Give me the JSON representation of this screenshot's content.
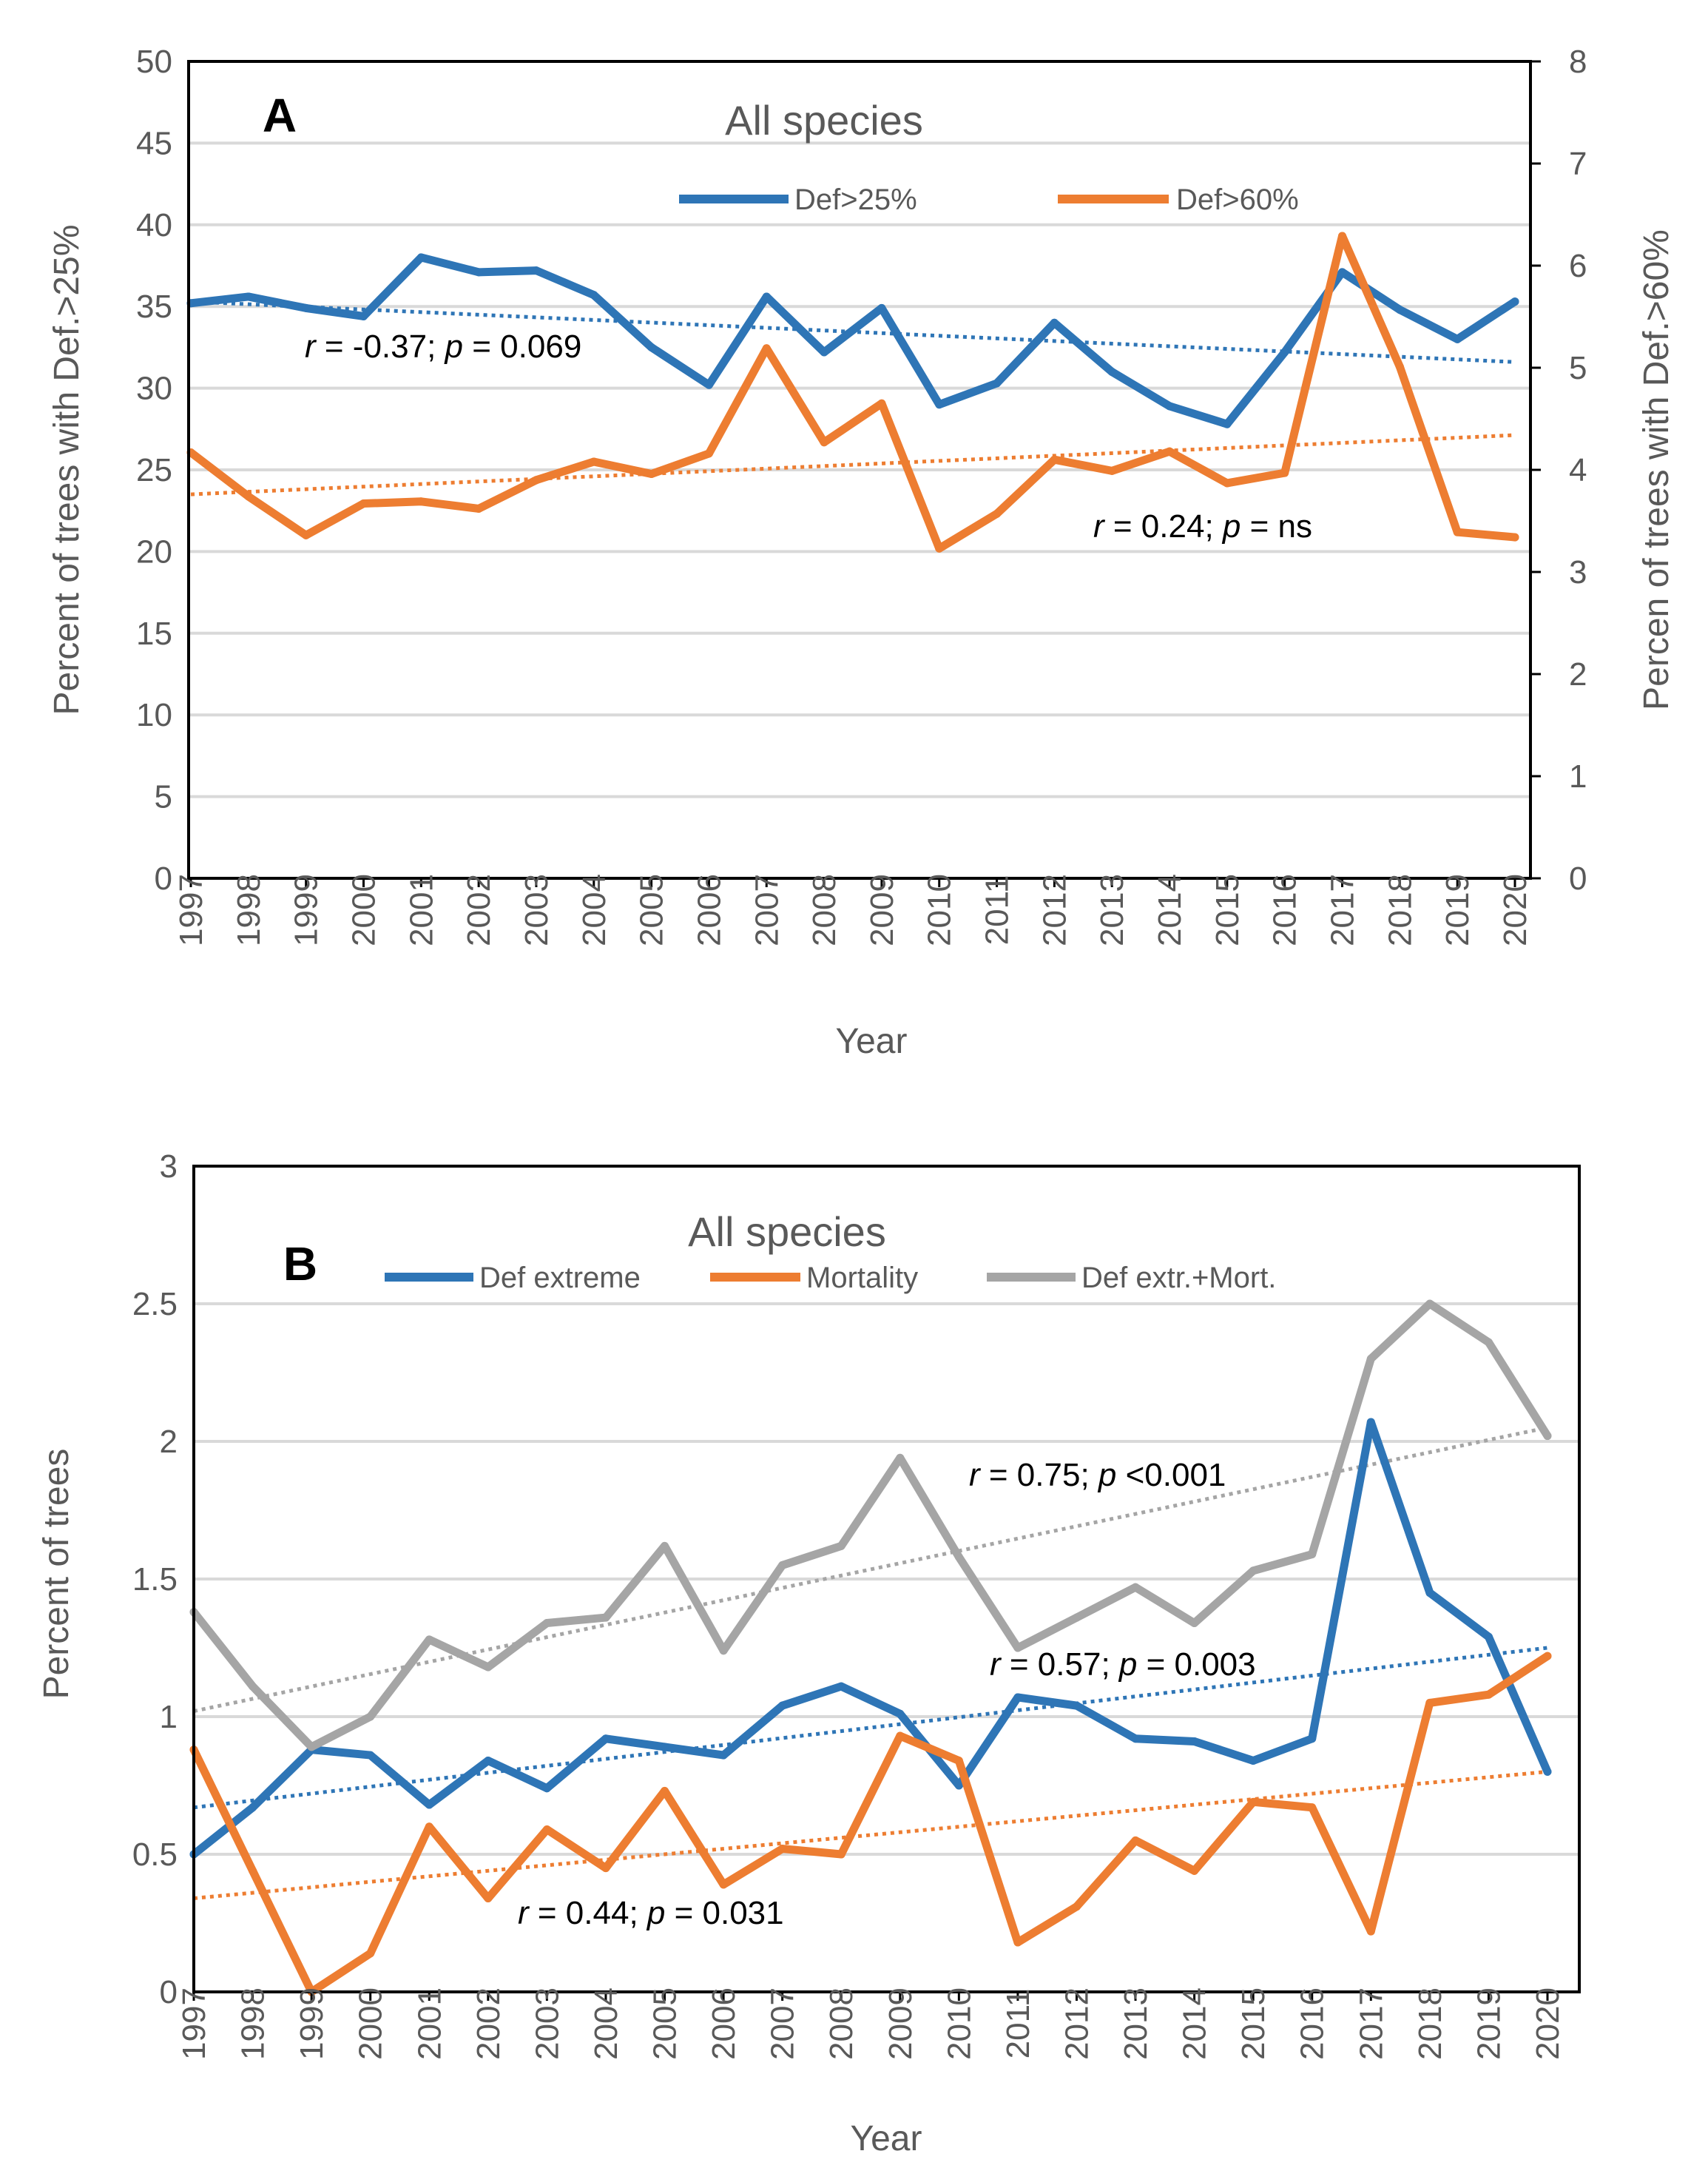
{
  "chart_data": [
    {
      "type": "line",
      "panel_label": "A",
      "title": "All species",
      "xlabel": "Year",
      "ylabel": "Percent of trees with Def.>25%",
      "ylabel_right": "Percen of trees with Def.>60%",
      "categories": [
        "1997",
        "1998",
        "1999",
        "2000",
        "2001",
        "2002",
        "2003",
        "2004",
        "2005",
        "2006",
        "2007",
        "2008",
        "2009",
        "2010",
        "2011",
        "2012",
        "2013",
        "2014",
        "2015",
        "2016",
        "2017",
        "2018",
        "2019",
        "2020"
      ],
      "ylim": [
        0,
        50
      ],
      "yticks": [
        "0",
        "5",
        "10",
        "15",
        "20",
        "25",
        "30",
        "35",
        "40",
        "45",
        "50"
      ],
      "ylim_right": [
        0,
        8
      ],
      "yticks_right": [
        "0",
        "1",
        "2",
        "3",
        "4",
        "5",
        "6",
        "7",
        "8"
      ],
      "grid": true,
      "legend_position": "top",
      "series": [
        {
          "name": "Def>25%",
          "axis": "left",
          "color": "#2E75B6",
          "values": [
            35.2,
            35.6,
            34.9,
            34.4,
            38.0,
            37.1,
            37.2,
            35.7,
            32.5,
            30.2,
            35.6,
            32.2,
            34.9,
            29.0,
            30.3,
            34.0,
            31.0,
            28.9,
            27.8,
            32.2,
            37.1,
            34.8,
            33.0,
            35.3
          ]
        },
        {
          "name": "Def>60%",
          "axis": "right",
          "color": "#ED7D31",
          "values": [
            4.17,
            3.74,
            3.36,
            3.67,
            3.69,
            3.62,
            3.9,
            4.08,
            3.96,
            4.16,
            5.19,
            4.27,
            4.65,
            3.23,
            3.57,
            4.1,
            3.99,
            4.18,
            3.87,
            3.97,
            6.29,
            5.01,
            3.39,
            3.34
          ]
        }
      ],
      "trendlines": [
        {
          "series": "Def>25%",
          "axis": "left",
          "start": 35.3,
          "end": 31.6,
          "color": "#2E75B6",
          "label_r": "r",
          "label_rest1": " = -0.37; ",
          "label_p": "p",
          "label_rest2": " = 0.069"
        },
        {
          "series": "Def>60%",
          "axis": "right",
          "start": 3.76,
          "end": 4.34,
          "color": "#ED7D31",
          "label_r": "r",
          "label_rest1": " = 0.24; ",
          "label_p": "p",
          "label_rest2": " = ns"
        }
      ]
    },
    {
      "type": "line",
      "panel_label": "B",
      "title": "All species",
      "xlabel": "Year",
      "ylabel": "Percent of trees",
      "categories": [
        "1997",
        "1998",
        "1999",
        "2000",
        "2001",
        "2002",
        "2003",
        "2004",
        "2005",
        "2006",
        "2007",
        "2008",
        "2009",
        "2010",
        "2011",
        "2012",
        "2013",
        "2014",
        "2015",
        "2016",
        "2017",
        "2018",
        "2019",
        "2020"
      ],
      "ylim": [
        0,
        3
      ],
      "yticks": [
        "0",
        "0.5",
        "1",
        "1.5",
        "2",
        "2.5",
        "3"
      ],
      "grid": true,
      "legend_position": "top",
      "series": [
        {
          "name": "Def extreme",
          "color": "#2E75B6",
          "values": [
            0.5,
            0.67,
            0.88,
            0.86,
            0.68,
            0.84,
            0.74,
            0.92,
            0.89,
            0.86,
            1.04,
            1.11,
            1.01,
            0.75,
            1.07,
            1.04,
            0.92,
            0.91,
            0.84,
            0.92,
            2.07,
            1.45,
            1.29,
            0.8
          ]
        },
        {
          "name": "Mortality",
          "color": "#ED7D31",
          "values": [
            0.88,
            0.44,
            0.0,
            0.14,
            0.6,
            0.34,
            0.59,
            0.45,
            0.73,
            0.39,
            0.52,
            0.5,
            0.93,
            0.84,
            0.18,
            0.31,
            0.55,
            0.44,
            0.69,
            0.67,
            0.22,
            1.05,
            1.08,
            1.22
          ]
        },
        {
          "name": "Def extr.+Mort.",
          "color": "#A5A5A5",
          "values": [
            1.38,
            1.11,
            0.89,
            1.0,
            1.28,
            1.18,
            1.34,
            1.36,
            1.62,
            1.24,
            1.55,
            1.62,
            1.94,
            1.58,
            1.25,
            1.36,
            1.47,
            1.34,
            1.53,
            1.59,
            2.3,
            2.5,
            2.36,
            2.02
          ]
        }
      ],
      "trendlines": [
        {
          "series": "Def extr.+Mort.",
          "start": 1.02,
          "end": 2.05,
          "color": "#A5A5A5",
          "label_r": "r",
          "label_rest1": " = 0.75; ",
          "label_p": "p",
          "label_rest2": " <0.001"
        },
        {
          "series": "Def extreme",
          "start": 0.67,
          "end": 1.25,
          "color": "#2E75B6",
          "label_r": "r",
          "label_rest1": " = 0.57; ",
          "label_p": "p",
          "label_rest2": " = 0.003"
        },
        {
          "series": "Mortality",
          "start": 0.34,
          "end": 0.8,
          "color": "#ED7D31",
          "label_r": "r",
          "label_rest1": " = 0.44; ",
          "label_p": "p",
          "label_rest2": " = 0.031"
        }
      ]
    }
  ]
}
